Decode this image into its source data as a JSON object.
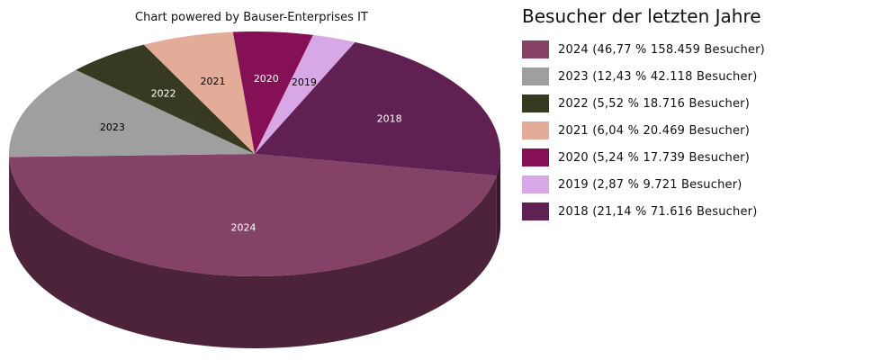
{
  "credit": "Chart powered by Bauser-Enterprises IT",
  "legend_title": "Besucher der letzten Jahre",
  "chart_data": {
    "type": "pie",
    "title": "Besucher der letzten Jahre",
    "slices": [
      {
        "label": "2024",
        "percent": 46.77,
        "value": 158459,
        "color": "#844266",
        "side_color": "#4C2339",
        "label_color": "#ffffff",
        "legend": "2024 (46,77 % 158.459 Besucher)"
      },
      {
        "label": "2023",
        "percent": 12.43,
        "value": 42118,
        "color": "#A09FA0",
        "side_color": "#5E5E5E",
        "label_color": "#000000",
        "legend": "2023 (12,43 % 42.118 Besucher)"
      },
      {
        "label": "2022",
        "percent": 5.52,
        "value": 18716,
        "color": "#373A20",
        "side_color": "#202212",
        "label_color": "#ffffff",
        "legend": "2022 (5,52 % 18.716 Besucher)"
      },
      {
        "label": "2021",
        "percent": 6.04,
        "value": 20469,
        "color": "#E3AC98",
        "side_color": "#8E6A5E",
        "label_color": "#000000",
        "legend": "2021 (6,04 % 20.469 Besucher)"
      },
      {
        "label": "2020",
        "percent": 5.24,
        "value": 17739,
        "color": "#861055",
        "side_color": "#4E0931",
        "label_color": "#ffffff",
        "legend": "2020 (5,24 % 17.739 Besucher)"
      },
      {
        "label": "2019",
        "percent": 2.87,
        "value": 9721,
        "color": "#D8A7E5",
        "side_color": "#83678C",
        "label_color": "#000000",
        "legend": "2019 (2,87 % 9.721 Besucher)"
      },
      {
        "label": "2018",
        "percent": 21.14,
        "value": 71616,
        "color": "#602152",
        "side_color": "#3A1431",
        "label_color": "#ffffff",
        "legend": "2018 (21,14 % 71.616 Besucher)"
      }
    ],
    "legend_position": "right",
    "style": "3d-pie"
  }
}
